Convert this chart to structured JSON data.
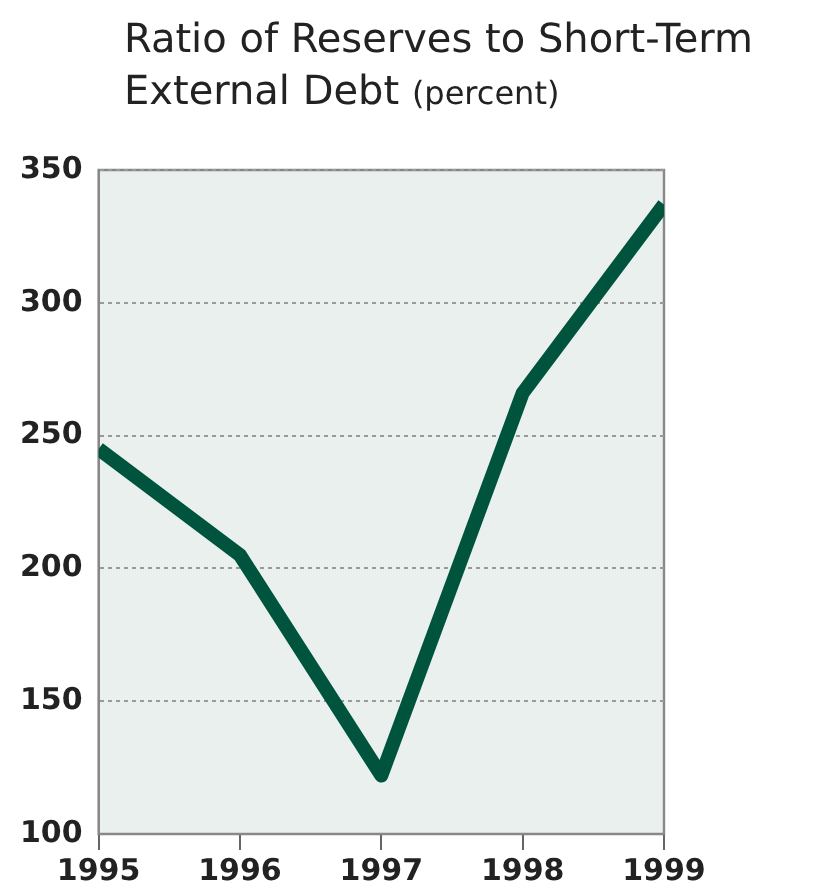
{
  "chart_data": {
    "type": "line",
    "title": "Ratio of Reserves to Short-Term External Debt",
    "subtitle": "(percent)",
    "x": [
      1995,
      1996,
      1997,
      1998,
      1999
    ],
    "series": [
      {
        "color": "#00533d",
        "values": [
          245,
          205,
          122,
          266,
          337
        ]
      }
    ],
    "xlim": [
      1995,
      1999
    ],
    "xticks": [
      1995,
      1996,
      1997,
      1998,
      1999
    ],
    "ylim": [
      100,
      350
    ],
    "yticks": [
      100,
      150,
      200,
      250,
      300,
      350
    ],
    "grid": "y",
    "legend": false,
    "marker": "none",
    "line_style": "solid"
  }
}
